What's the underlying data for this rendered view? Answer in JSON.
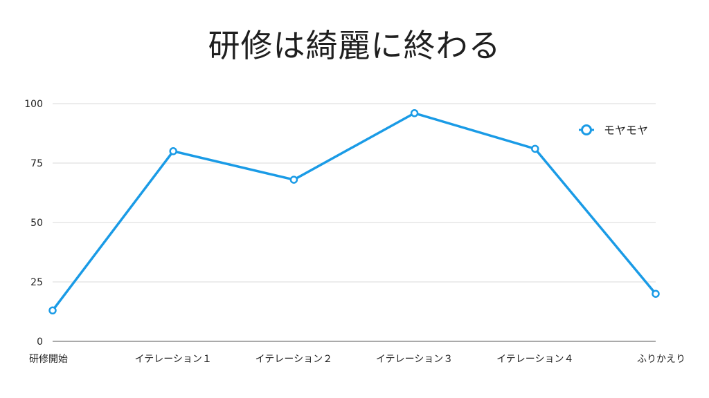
{
  "chart_data": {
    "type": "line",
    "title": "研修は綺麗に終わる",
    "categories": [
      "研修開始",
      "イテレーション１",
      "イテレーション２",
      "イテレーション３",
      "イテレーション４",
      "ふりかえり"
    ],
    "series": [
      {
        "name": "モヤモヤ",
        "values": [
          13,
          80,
          68,
          96,
          81,
          20
        ],
        "color": "#1a9be6"
      }
    ],
    "yticks": [
      "0",
      "25",
      "50",
      "75",
      "100"
    ],
    "ylim": [
      0,
      100
    ],
    "grid": true,
    "legend_position": "top-right"
  }
}
